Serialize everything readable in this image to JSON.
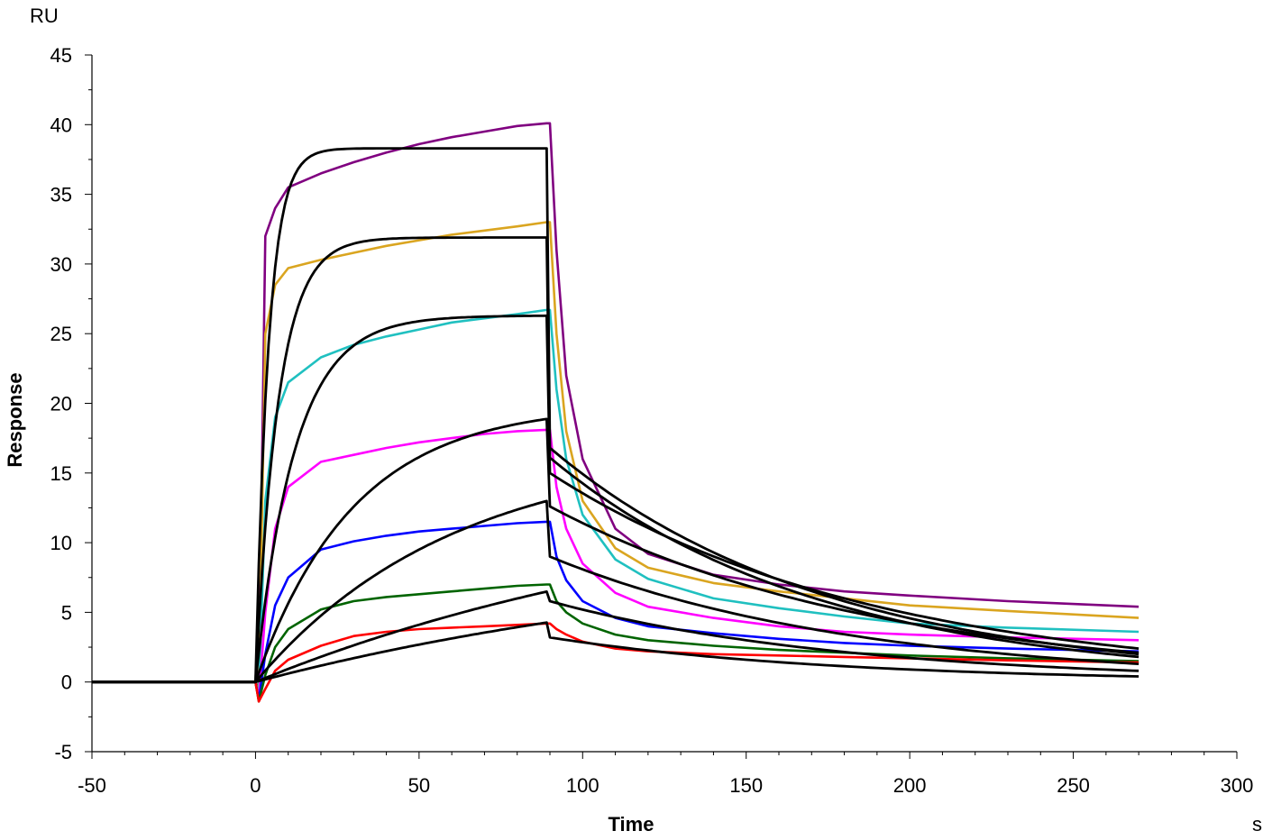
{
  "chart_data": {
    "type": "line",
    "xlabel": "Time",
    "ylabel": "Response",
    "x_unit": "s",
    "y_unit": "RU",
    "xlim": [
      -50,
      300
    ],
    "ylim": [
      -5,
      45
    ],
    "x_ticks": [
      -50,
      0,
      50,
      100,
      150,
      200,
      250,
      300
    ],
    "y_ticks": [
      -5,
      0,
      5,
      10,
      15,
      20,
      25,
      30,
      35,
      40,
      45
    ],
    "x_tick_labels": [
      "-50",
      "0",
      "50",
      "100",
      "150",
      "200",
      "250",
      "300"
    ],
    "y_tick_labels": [
      "-5",
      "0",
      "5",
      "10",
      "15",
      "20",
      "25",
      "30",
      "35",
      "40",
      "45"
    ],
    "grid": false,
    "legend": "none",
    "series": [
      {
        "color": "#800080",
        "x": [
          -50,
          0,
          1,
          3,
          6,
          10,
          20,
          30,
          40,
          50,
          60,
          70,
          80,
          89,
          90,
          92,
          95,
          100,
          110,
          120,
          140,
          160,
          180,
          200,
          230,
          270
        ],
        "y": [
          0,
          0,
          -0.5,
          32,
          34,
          35.5,
          36.5,
          37.3,
          38,
          38.6,
          39.1,
          39.5,
          39.9,
          40.1,
          40.1,
          31,
          22,
          16,
          11,
          9.2,
          7.7,
          7.0,
          6.5,
          6.2,
          5.8,
          5.4
        ]
      },
      {
        "color": "#DAA520",
        "x": [
          -50,
          0,
          1,
          3,
          6,
          10,
          20,
          30,
          40,
          50,
          60,
          70,
          80,
          89,
          90,
          92,
          95,
          100,
          110,
          120,
          140,
          160,
          180,
          200,
          230,
          270
        ],
        "y": [
          0,
          0,
          -0.8,
          25,
          28.5,
          29.7,
          30.3,
          30.8,
          31.3,
          31.7,
          32.1,
          32.4,
          32.7,
          33,
          33,
          25,
          18,
          13,
          9.6,
          8.2,
          7.1,
          6.5,
          6.0,
          5.5,
          5.1,
          4.6
        ]
      },
      {
        "color": "#20C0C0",
        "x": [
          -50,
          0,
          1,
          3,
          6,
          10,
          20,
          30,
          40,
          50,
          60,
          70,
          80,
          89,
          90,
          92,
          95,
          100,
          110,
          120,
          140,
          160,
          180,
          200,
          230,
          270
        ],
        "y": [
          0,
          0,
          -1,
          13,
          19,
          21.5,
          23.3,
          24.2,
          24.8,
          25.3,
          25.8,
          26.1,
          26.4,
          26.7,
          26.7,
          21,
          16,
          12,
          8.8,
          7.4,
          6.0,
          5.3,
          4.7,
          4.2,
          3.9,
          3.6
        ]
      },
      {
        "color": "#FF00FF",
        "x": [
          -50,
          0,
          1,
          3,
          6,
          10,
          20,
          30,
          40,
          50,
          60,
          70,
          80,
          89,
          90,
          92,
          95,
          100,
          110,
          120,
          140,
          160,
          180,
          200,
          230,
          270
        ],
        "y": [
          0,
          0,
          -1.2,
          5,
          11,
          14,
          15.8,
          16.3,
          16.8,
          17.2,
          17.5,
          17.8,
          18,
          18.1,
          18.1,
          14,
          11,
          8.5,
          6.4,
          5.4,
          4.6,
          4.0,
          3.6,
          3.4,
          3.2,
          3.0
        ]
      },
      {
        "color": "#0000FF",
        "x": [
          -50,
          0,
          1,
          3,
          6,
          10,
          20,
          30,
          40,
          50,
          60,
          70,
          80,
          89,
          90,
          92,
          95,
          100,
          110,
          120,
          140,
          160,
          180,
          200,
          230,
          270
        ],
        "y": [
          0,
          0,
          -1.3,
          2,
          5.5,
          7.5,
          9.5,
          10.1,
          10.5,
          10.8,
          11,
          11.2,
          11.4,
          11.5,
          11.5,
          9,
          7.3,
          5.8,
          4.6,
          4.0,
          3.5,
          3.1,
          2.8,
          2.6,
          2.4,
          2.2
        ]
      },
      {
        "color": "#006400",
        "x": [
          -50,
          0,
          1,
          3,
          6,
          10,
          20,
          30,
          40,
          50,
          60,
          70,
          80,
          89,
          90,
          92,
          95,
          100,
          110,
          120,
          140,
          160,
          180,
          200,
          230,
          270
        ],
        "y": [
          0,
          0,
          -1.4,
          0.5,
          2.5,
          3.8,
          5.2,
          5.8,
          6.1,
          6.3,
          6.5,
          6.7,
          6.9,
          7,
          7,
          5.8,
          5.0,
          4.2,
          3.4,
          3.0,
          2.6,
          2.3,
          2.1,
          1.9,
          1.7,
          1.5
        ]
      },
      {
        "color": "#FF0000",
        "x": [
          -50,
          0,
          1,
          3,
          6,
          10,
          20,
          30,
          40,
          50,
          60,
          70,
          80,
          89,
          90,
          92,
          95,
          100,
          110,
          120,
          140,
          160,
          180,
          200,
          230,
          270
        ],
        "y": [
          0,
          0,
          -1.4,
          -0.5,
          0.8,
          1.6,
          2.6,
          3.3,
          3.6,
          3.8,
          3.9,
          4.0,
          4.1,
          4.2,
          4.2,
          3.8,
          3.4,
          2.9,
          2.4,
          2.2,
          2.0,
          1.9,
          1.8,
          1.7,
          1.55,
          1.4
        ]
      }
    ],
    "fits": [
      {
        "color": "#000000",
        "plateau": 38.3,
        "tau_assoc": 4,
        "start": 0,
        "dissoc_start": 16.8,
        "dissoc_end": 2.0
      },
      {
        "color": "#000000",
        "plateau": 31.9,
        "tau_assoc": 7,
        "start": 0,
        "dissoc_start": 16.1,
        "dissoc_end": 1.8
      },
      {
        "color": "#000000",
        "plateau": 26.3,
        "tau_assoc": 12,
        "start": 0,
        "dissoc_start": 15.0,
        "dissoc_end": 2.4
      },
      {
        "color": "#000000",
        "plateau": 19.9,
        "tau_assoc": 30,
        "start": 0,
        "dissoc_start": 12.6,
        "dissoc_end": 2.1
      },
      {
        "color": "#000000",
        "plateau": 16.8,
        "tau_assoc": 60,
        "start": 0,
        "dissoc_start": 9.0,
        "dissoc_end": 1.3
      },
      {
        "color": "#000000",
        "plateau": 14.5,
        "tau_assoc": 150,
        "start": 0,
        "dissoc_start": 5.8,
        "dissoc_end": 0.8
      },
      {
        "color": "#000000",
        "plateau": 10.0,
        "tau_assoc": 160,
        "start": 0,
        "dissoc_start": 3.2,
        "dissoc_end": 0.4
      }
    ]
  }
}
